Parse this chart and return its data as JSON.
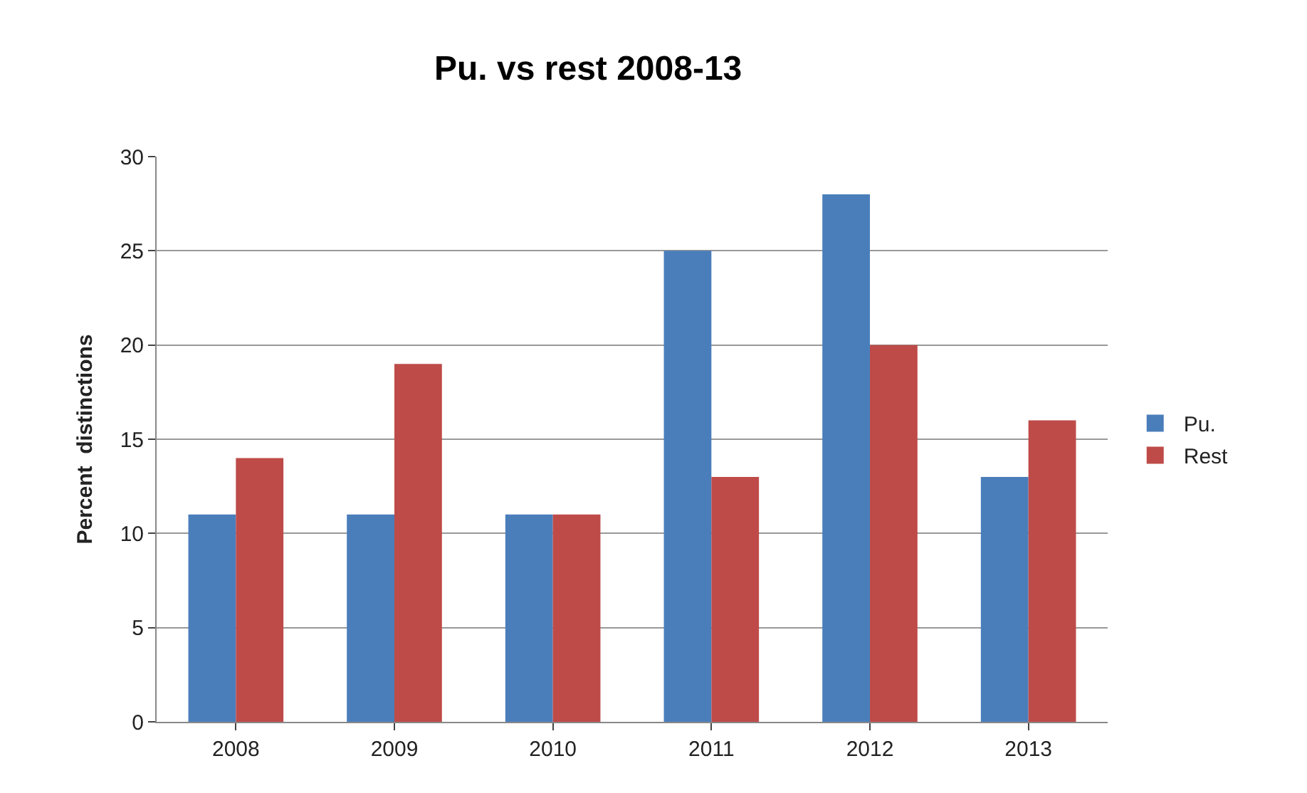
{
  "chart_data": {
    "type": "bar",
    "title": "Pu. vs rest 2008-13",
    "ylabel": "Percent  distinctions",
    "categories": [
      "2008",
      "2009",
      "2010",
      "2011",
      "2012",
      "2013"
    ],
    "series": [
      {
        "name": "Pu.",
        "color": "#4a7ebb",
        "values": [
          11,
          11,
          11,
          25,
          28,
          13
        ]
      },
      {
        "name": "Rest",
        "color": "#be4b48",
        "values": [
          14,
          19,
          11,
          13,
          20,
          16
        ]
      }
    ],
    "ylim": [
      0,
      30
    ],
    "yticks": [
      0,
      5,
      10,
      15,
      20,
      25,
      30
    ],
    "grid": "y",
    "legend": "right"
  }
}
